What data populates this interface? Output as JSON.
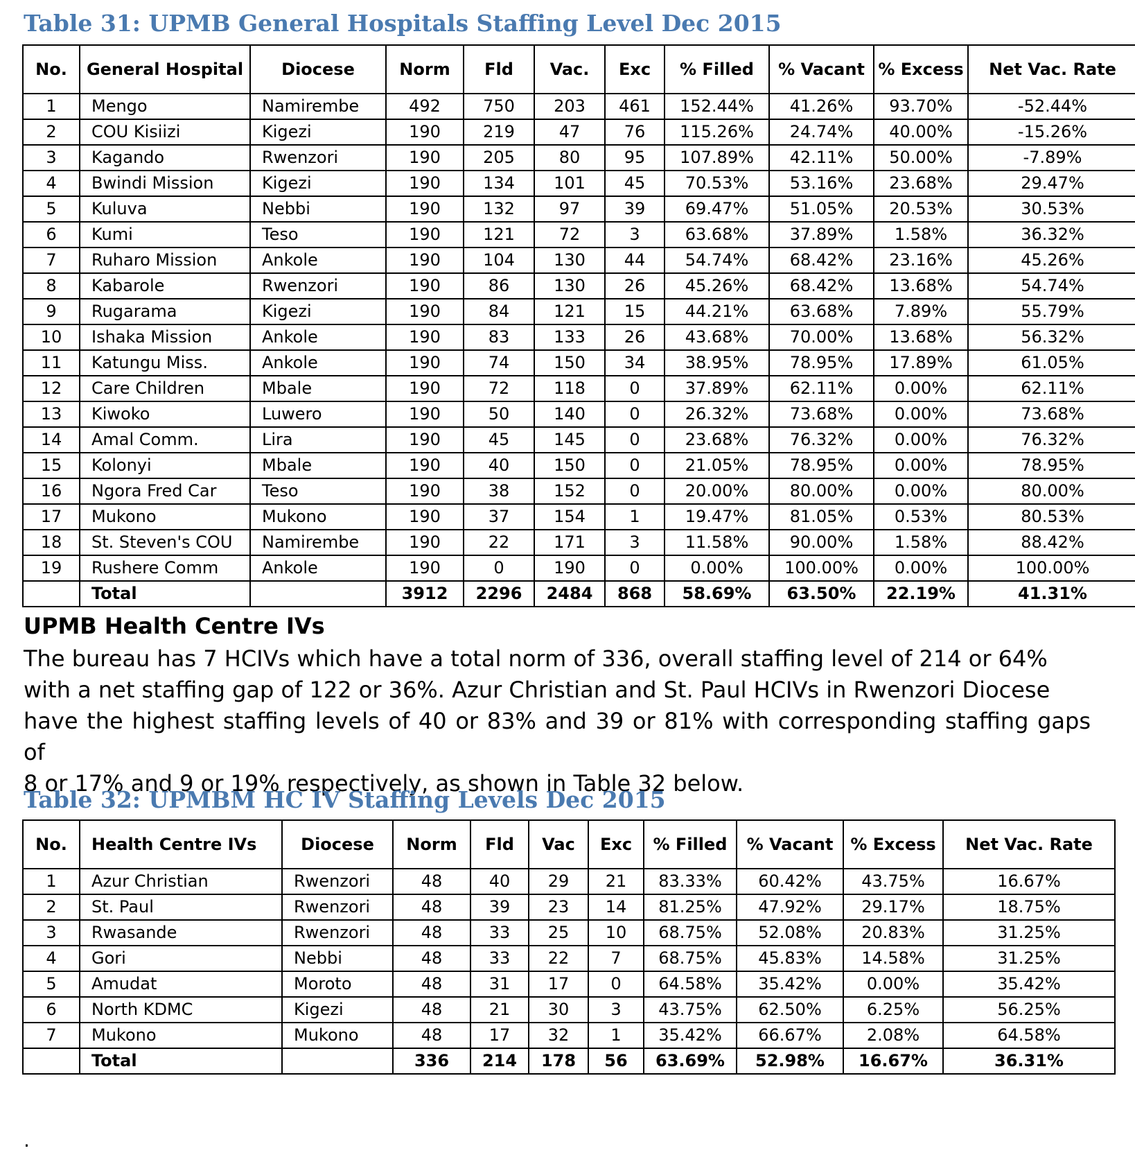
{
  "table31": {
    "caption": "Table 31: UPMB General Hospitals Staffing Level Dec 2015",
    "headers": [
      "No.",
      "General Hospital",
      "Diocese",
      "Norm",
      "Fld",
      "Vac.",
      "Exc",
      "% Filled",
      "% Vacant",
      "% Excess",
      "Net Vac. Rate"
    ],
    "rows": [
      [
        "1",
        "Mengo",
        "Namirembe",
        "492",
        "750",
        "203",
        "461",
        "152.44%",
        "41.26%",
        "93.70%",
        "-52.44%"
      ],
      [
        "2",
        "COU Kisiizi",
        "Kigezi",
        "190",
        "219",
        "47",
        "76",
        "115.26%",
        "24.74%",
        "40.00%",
        "-15.26%"
      ],
      [
        "3",
        "Kagando",
        "Rwenzori",
        "190",
        "205",
        "80",
        "95",
        "107.89%",
        "42.11%",
        "50.00%",
        "-7.89%"
      ],
      [
        "4",
        "Bwindi Mission",
        "Kigezi",
        "190",
        "134",
        "101",
        "45",
        "70.53%",
        "53.16%",
        "23.68%",
        "29.47%"
      ],
      [
        "5",
        "Kuluva",
        "Nebbi",
        "190",
        "132",
        "97",
        "39",
        "69.47%",
        "51.05%",
        "20.53%",
        "30.53%"
      ],
      [
        "6",
        "Kumi",
        "Teso",
        "190",
        "121",
        "72",
        "3",
        "63.68%",
        "37.89%",
        "1.58%",
        "36.32%"
      ],
      [
        "7",
        "Ruharo Mission",
        "Ankole",
        "190",
        "104",
        "130",
        "44",
        "54.74%",
        "68.42%",
        "23.16%",
        "45.26%"
      ],
      [
        "8",
        "Kabarole",
        "Rwenzori",
        "190",
        "86",
        "130",
        "26",
        "45.26%",
        "68.42%",
        "13.68%",
        "54.74%"
      ],
      [
        "9",
        "Rugarama",
        "Kigezi",
        "190",
        "84",
        "121",
        "15",
        "44.21%",
        "63.68%",
        "7.89%",
        "55.79%"
      ],
      [
        "10",
        "Ishaka Mission",
        "Ankole",
        "190",
        "83",
        "133",
        "26",
        "43.68%",
        "70.00%",
        "13.68%",
        "56.32%"
      ],
      [
        "11",
        "Katungu Miss.",
        "Ankole",
        "190",
        "74",
        "150",
        "34",
        "38.95%",
        "78.95%",
        "17.89%",
        "61.05%"
      ],
      [
        "12",
        "Care Children",
        "Mbale",
        "190",
        "72",
        "118",
        "0",
        "37.89%",
        "62.11%",
        "0.00%",
        "62.11%"
      ],
      [
        "13",
        "Kiwoko",
        "Luwero",
        "190",
        "50",
        "140",
        "0",
        "26.32%",
        "73.68%",
        "0.00%",
        "73.68%"
      ],
      [
        "14",
        "Amal Comm.",
        "Lira",
        "190",
        "45",
        "145",
        "0",
        "23.68%",
        "76.32%",
        "0.00%",
        "76.32%"
      ],
      [
        "15",
        "Kolonyi",
        "Mbale",
        "190",
        "40",
        "150",
        "0",
        "21.05%",
        "78.95%",
        "0.00%",
        "78.95%"
      ],
      [
        "16",
        "Ngora Fred Car",
        "Teso",
        "190",
        "38",
        "152",
        "0",
        "20.00%",
        "80.00%",
        "0.00%",
        "80.00%"
      ],
      [
        "17",
        "Mukono",
        "Mukono",
        "190",
        "37",
        "154",
        "1",
        "19.47%",
        "81.05%",
        "0.53%",
        "80.53%"
      ],
      [
        "18",
        "St. Steven's COU",
        "Namirembe",
        "190",
        "22",
        "171",
        "3",
        "11.58%",
        "90.00%",
        "1.58%",
        "88.42%"
      ],
      [
        "19",
        "Rushere Comm",
        "Ankole",
        "190",
        "0",
        "190",
        "0",
        "0.00%",
        "100.00%",
        "0.00%",
        "100.00%"
      ]
    ],
    "total": [
      "",
      "Total",
      "",
      "3912",
      "2296",
      "2484",
      "868",
      "58.69%",
      "63.50%",
      "22.19%",
      "41.31%"
    ]
  },
  "section": {
    "title": "UPMB Health Centre IVs",
    "lines": [
      "The bureau has 7 HCIVs which have a total norm of 336, overall staffing level of 214 or 64%",
      "with a net staffing gap of 122 or 36%. Azur Christian and St. Paul HCIVs in Rwenzori Diocese",
      "have the highest staffing levels of 40 or 83% and 39 or 81% with corresponding staffing gaps of",
      "8 or 17% and 9 or 19% respectively, as shown in Table 32 below."
    ]
  },
  "table32": {
    "caption": "Table 32: UPMBM HC IV Staffing Levels Dec 2015",
    "headers": [
      "No.",
      "Health Centre IVs",
      "Diocese",
      "Norm",
      "Fld",
      "Vac",
      "Exc",
      "% Filled",
      "% Vacant",
      "% Excess",
      "Net Vac. Rate"
    ],
    "rows": [
      [
        "1",
        "Azur Christian",
        "Rwenzori",
        "48",
        "40",
        "29",
        "21",
        "83.33%",
        "60.42%",
        "43.75%",
        "16.67%"
      ],
      [
        "2",
        "St. Paul",
        "Rwenzori",
        "48",
        "39",
        "23",
        "14",
        "81.25%",
        "47.92%",
        "29.17%",
        "18.75%"
      ],
      [
        "3",
        "Rwasande",
        "Rwenzori",
        "48",
        "33",
        "25",
        "10",
        "68.75%",
        "52.08%",
        "20.83%",
        "31.25%"
      ],
      [
        "4",
        "Gori",
        "Nebbi",
        "48",
        "33",
        "22",
        "7",
        "68.75%",
        "45.83%",
        "14.58%",
        "31.25%"
      ],
      [
        "5",
        "Amudat",
        "Moroto",
        "48",
        "31",
        "17",
        "0",
        "64.58%",
        "35.42%",
        "0.00%",
        "35.42%"
      ],
      [
        "6",
        "North KDMC",
        "Kigezi",
        "48",
        "21",
        "30",
        "3",
        "43.75%",
        "62.50%",
        "6.25%",
        "56.25%"
      ],
      [
        "7",
        "Mukono",
        "Mukono",
        "48",
        "17",
        "32",
        "1",
        "35.42%",
        "66.67%",
        "2.08%",
        "64.58%"
      ]
    ],
    "total": [
      "",
      "Total",
      "",
      "336",
      "214",
      "178",
      "56",
      "63.69%",
      "52.98%",
      "16.67%",
      "36.31%"
    ]
  },
  "trailing_mark": "."
}
